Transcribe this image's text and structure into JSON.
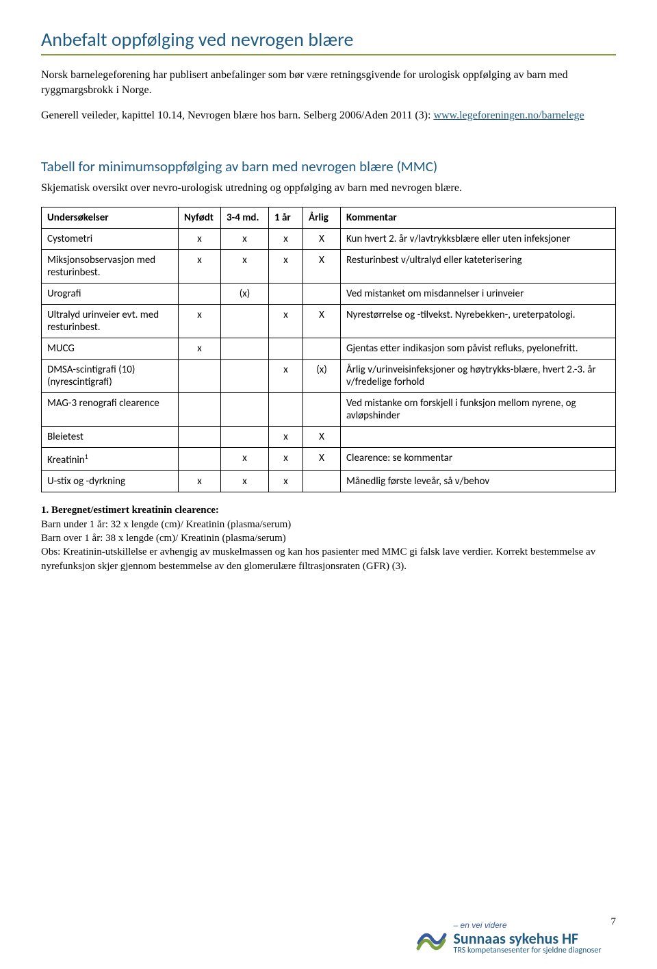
{
  "heading1": "Anbefalt oppfølging ved nevrogen blære",
  "intro": "Norsk barnelegeforening har publisert anbefalinger som bør være retningsgivende for urologisk oppfølging av barn med ryggmargsbrokk i Norge.",
  "ref_line": "Generell veileder, kapittel 10.14, Nevrogen blære hos barn. Selberg 2006/Aden 2011 (3): ",
  "ref_link": "www.legeforeningen.no/barnelege",
  "heading2": "Tabell for minimumsoppfølging av barn med nevrogen blære (MMC)",
  "subtitle": "Skjematisk oversikt over nevro-urologisk utredning og oppfølging av barn med nevrogen blære.",
  "table": {
    "headers": [
      "Undersøkelser",
      "Nyfødt",
      "3-4 md.",
      "1 år",
      "Årlig",
      "Kommentar"
    ],
    "rows": [
      {
        "label": "Cystometri",
        "c": [
          "x",
          "x",
          "x",
          "X"
        ],
        "comment": "Kun hvert 2. år v/lavtrykksblære eller uten infeksjoner"
      },
      {
        "label": "Miksjonsobservasjon med resturinbest.",
        "c": [
          "x",
          "x",
          "x",
          "X"
        ],
        "comment": "Resturinbest v/ultralyd eller kateterisering"
      },
      {
        "label": "Urografi",
        "c": [
          "",
          "(x)",
          "",
          ""
        ],
        "comment": "Ved mistanket om misdannelser i urinveier"
      },
      {
        "label": "Ultralyd urinveier evt. med resturinbest.",
        "c": [
          "x",
          "",
          "x",
          "X"
        ],
        "comment": "Nyrestørrelse og -tilvekst. Nyrebekken-, ureterpatologi."
      },
      {
        "label": "MUCG",
        "c": [
          "x",
          "",
          "",
          ""
        ],
        "comment": "Gjentas etter indikasjon som påvist refluks, pyelonefritt."
      },
      {
        "label": "DMSA-scintigrafi (10)(nyrescintigrafi)",
        "c": [
          "",
          "",
          "x",
          "(x)"
        ],
        "comment": "Årlig v/urinveisinfeksjoner og høytrykks-blære, hvert 2.-3. år v/fredelige forhold"
      },
      {
        "label": "MAG-3 renografi clearence",
        "c": [
          "",
          "",
          "",
          ""
        ],
        "comment": "Ved mistanke om forskjell i funksjon mellom nyrene, og avløpshinder"
      },
      {
        "label": "Bleietest",
        "c": [
          "",
          "",
          "x",
          "X"
        ],
        "comment": ""
      },
      {
        "label": "Kreatinin",
        "sup": "1",
        "c": [
          "",
          "x",
          "x",
          "X"
        ],
        "comment": "Clearence: se kommentar"
      },
      {
        "label": "U-stix og -dyrkning",
        "c": [
          "x",
          "x",
          "x",
          ""
        ],
        "comment": "Månedlig første leveår, så v/behov"
      }
    ]
  },
  "footnote": {
    "head": "1. Beregnet/estimert kreatinin clearence:",
    "l1": "Barn under 1 år: 32 x lengde (cm)/ Kreatinin (plasma/serum)",
    "l2": "Barn over 1 år: 38 x lengde (cm)/ Kreatinin (plasma/serum)",
    "l3": "Obs: Kreatinin-utskillelse er avhengig av muskelmassen og kan hos pasienter med MMC gi falsk lave verdier. Korrekt bestemmelse av nyrefunksjon skjer gjennom bestemmelse av den glomerulære filtrasjonsraten (GFR) (3)."
  },
  "footer": {
    "tagline": "– en vei videre",
    "org": "Sunnaas sykehus HF",
    "sub": "TRS kompetansesenter for sjeldne diagnoser",
    "page": "7",
    "logo_color": "#1f5b82"
  }
}
